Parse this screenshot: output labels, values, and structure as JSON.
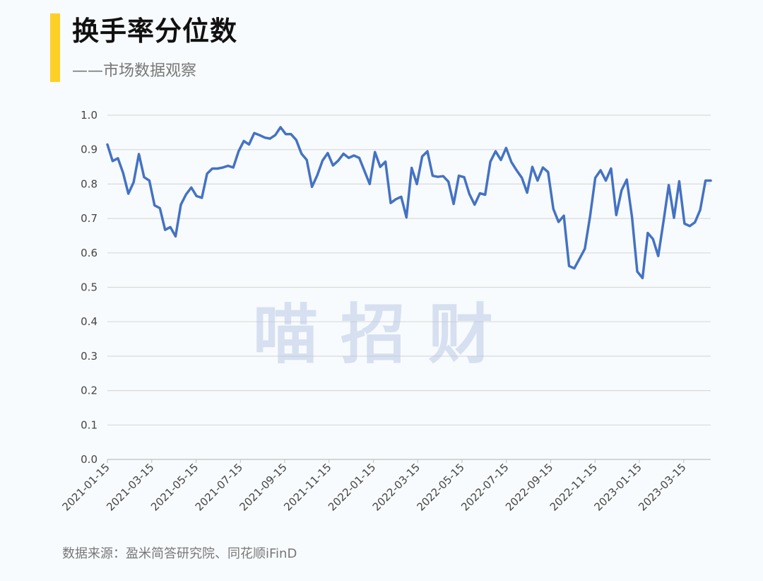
{
  "header": {
    "title": "换手率分位数",
    "subtitle": "——市场数据观察"
  },
  "watermark": "喵 招 财",
  "footer": {
    "source": "数据来源：盈米简答研究院、同花顺iFinD"
  },
  "colors": {
    "accent": "#fdd028",
    "line": "#4472c4",
    "grid": "#d9d9d9",
    "watermark": "#bccbe6"
  },
  "chart_data": {
    "type": "line",
    "title": "",
    "xlabel": "",
    "ylabel": "",
    "ylim": [
      0,
      1.0
    ],
    "y_ticks": [
      "0.0",
      "0.1",
      "0.2",
      "0.3",
      "0.4",
      "0.5",
      "0.6",
      "0.7",
      "0.8",
      "0.9",
      "1.0"
    ],
    "x_tick_labels": [
      "2021-01-15",
      "2021-03-15",
      "2021-05-15",
      "2021-07-15",
      "2021-09-15",
      "2021-11-15",
      "2022-01-15",
      "2022-03-15",
      "2022-05-15",
      "2022-07-15",
      "2022-09-15",
      "2022-11-15",
      "2023-01-15",
      "2023-03-15"
    ],
    "grid": true,
    "legend": "none",
    "series": [
      {
        "values": [
          0.915,
          0.867,
          0.875,
          0.832,
          0.772,
          0.805,
          0.887,
          0.82,
          0.81,
          0.738,
          0.73,
          0.667,
          0.675,
          0.648,
          0.74,
          0.77,
          0.79,
          0.765,
          0.76,
          0.83,
          0.845,
          0.845,
          0.848,
          0.853,
          0.848,
          0.895,
          0.925,
          0.915,
          0.948,
          0.942,
          0.935,
          0.932,
          0.942,
          0.965,
          0.945,
          0.945,
          0.928,
          0.888,
          0.87,
          0.792,
          0.825,
          0.868,
          0.89,
          0.854,
          0.868,
          0.888,
          0.876,
          0.883,
          0.876,
          0.838,
          0.8,
          0.893,
          0.85,
          0.865,
          0.745,
          0.756,
          0.763,
          0.703,
          0.847,
          0.8,
          0.88,
          0.895,
          0.824,
          0.821,
          0.823,
          0.807,
          0.742,
          0.824,
          0.82,
          0.771,
          0.74,
          0.773,
          0.769,
          0.865,
          0.895,
          0.87,
          0.905,
          0.864,
          0.84,
          0.818,
          0.775,
          0.85,
          0.81,
          0.848,
          0.835,
          0.728,
          0.69,
          0.708,
          0.562,
          0.555,
          0.583,
          0.612,
          0.706,
          0.818,
          0.84,
          0.81,
          0.845,
          0.71,
          0.782,
          0.813,
          0.704,
          0.546,
          0.527,
          0.658,
          0.64,
          0.591,
          0.692,
          0.797,
          0.702,
          0.808,
          0.685,
          0.678,
          0.689,
          0.725,
          0.81,
          0.81
        ]
      }
    ]
  }
}
